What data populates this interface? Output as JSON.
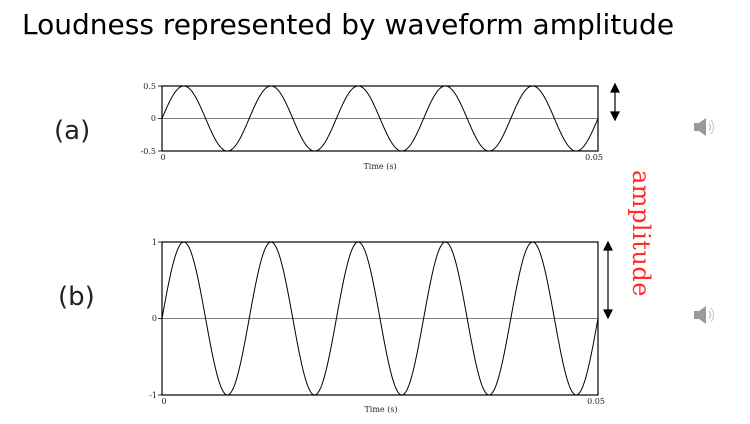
{
  "title": "Loudness represented by waveform amplitude",
  "annotation": "amplitude",
  "colors": {
    "annotation": "#ff2a2a",
    "waveform": "#000000",
    "speaker": "#9a9a9a"
  },
  "icons": [
    "speaker-icon",
    "speaker-icon"
  ],
  "chart_data": [
    {
      "type": "line",
      "panel_label": "(a)",
      "xlabel": "Time (s)",
      "ylabel": "",
      "xlim": [
        0,
        0.05
      ],
      "ylim": [
        -0.5,
        0.5
      ],
      "x_ticks": [
        "0",
        "0.05"
      ],
      "y_ticks": [
        "0.5",
        "0",
        "-0.5"
      ],
      "series": [
        {
          "function": "sine",
          "amplitude": 0.5,
          "frequency_hz": 100
        }
      ],
      "grid": false,
      "zero_line": true
    },
    {
      "type": "line",
      "panel_label": "(b)",
      "xlabel": "Time (s)",
      "ylabel": "",
      "xlim": [
        0,
        0.05
      ],
      "ylim": [
        -1,
        1
      ],
      "x_ticks": [
        "0",
        "0.05"
      ],
      "y_ticks": [
        "1",
        "0",
        "-1"
      ],
      "series": [
        {
          "function": "sine",
          "amplitude": 1,
          "frequency_hz": 100
        }
      ],
      "grid": false,
      "zero_line": true
    }
  ]
}
